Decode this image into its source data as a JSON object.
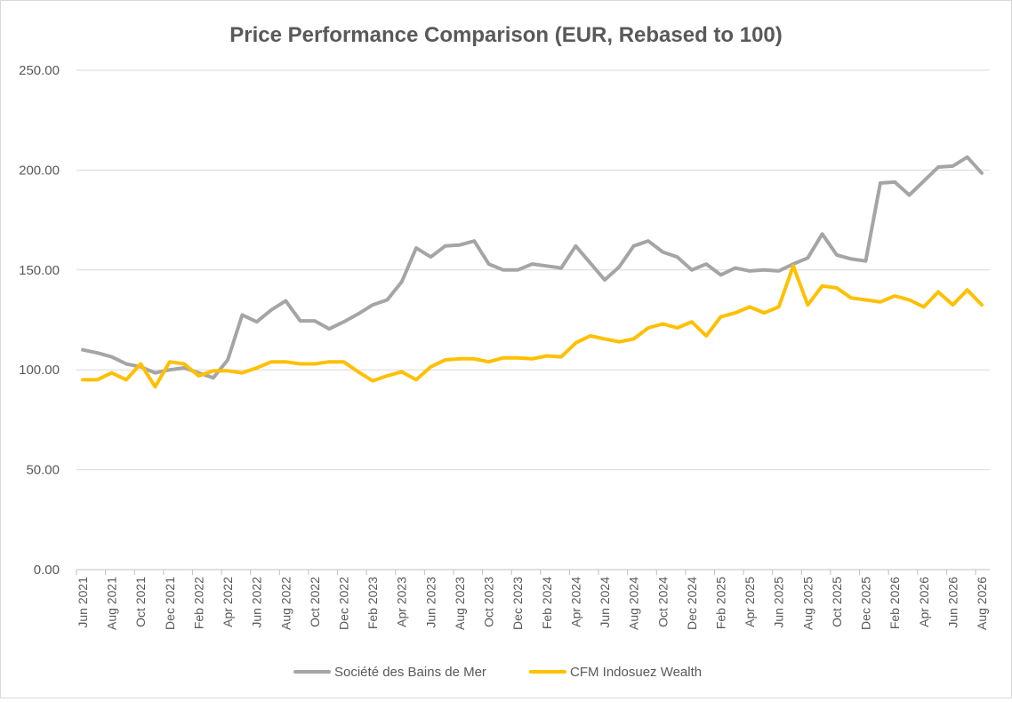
{
  "chart_data": {
    "type": "line",
    "title": "Price Performance Comparison (EUR, Rebased to 100)",
    "xlabel": "",
    "ylabel": "",
    "ylim": [
      0,
      250
    ],
    "yticks": [
      "0.00",
      "50.00",
      "100.00",
      "150.00",
      "200.00",
      "250.00"
    ],
    "grid": true,
    "legend_position": "bottom",
    "tick_labels": [
      "Jun 2021",
      "Aug 2021",
      "Oct 2021",
      "Dec 2021",
      "Feb 2022",
      "Apr 2022",
      "Jun 2022",
      "Aug 2022",
      "Oct 2022",
      "Dec 2022",
      "Feb 2023",
      "Apr 2023",
      "Jun 2023",
      "Aug 2023",
      "Oct 2023",
      "Dec 2023",
      "Feb 2024",
      "Apr 2024",
      "Jun 2024",
      "Aug 2024",
      "Oct 2024",
      "Dec 2024",
      "Feb 2025",
      "Apr 2025",
      "Jun 2025",
      "Aug 2025",
      "Oct 2025",
      "Dec 2025",
      "Feb 2026",
      "Apr 2026",
      "Jun 2026",
      "Aug 2026"
    ],
    "x": [
      "Jun 2021",
      "Jul 2021",
      "Aug 2021",
      "Sep 2021",
      "Oct 2021",
      "Nov 2021",
      "Dec 2021",
      "Jan 2022",
      "Feb 2022",
      "Mar 2022",
      "Apr 2022",
      "May 2022",
      "Jun 2022",
      "Jul 2022",
      "Aug 2022",
      "Sep 2022",
      "Oct 2022",
      "Nov 2022",
      "Dec 2022",
      "Jan 2023",
      "Feb 2023",
      "Mar 2023",
      "Apr 2023",
      "May 2023",
      "Jun 2023",
      "Jul 2023",
      "Aug 2023",
      "Sep 2023",
      "Oct 2023",
      "Nov 2023",
      "Dec 2023",
      "Jan 2024",
      "Feb 2024",
      "Mar 2024",
      "Apr 2024",
      "May 2024",
      "Jun 2024",
      "Jul 2024",
      "Aug 2024",
      "Sep 2024",
      "Oct 2024",
      "Nov 2024",
      "Dec 2024",
      "Jan 2025",
      "Feb 2025",
      "Mar 2025",
      "Apr 2025",
      "May 2025",
      "Jun 2025",
      "Jul 2025",
      "Aug 2025",
      "Sep 2025",
      "Oct 2025",
      "Nov 2025",
      "Dec 2025",
      "Jan 2026",
      "Feb 2026",
      "Mar 2026",
      "Apr 2026",
      "May 2026",
      "Jun 2026",
      "Jul 2026",
      "Aug 2026"
    ],
    "series": [
      {
        "name": "Société des Bains de Mer",
        "color": "#a5a5a5",
        "values": [
          110.0,
          108.5,
          106.5,
          103.0,
          101.5,
          98.5,
          100.0,
          101.0,
          98.5,
          96.0,
          105.0,
          127.5,
          124.0,
          130.0,
          134.5,
          124.5,
          124.5,
          120.5,
          124.0,
          128.0,
          132.5,
          135.0,
          144.0,
          161.0,
          156.5,
          162.0,
          162.5,
          164.5,
          153.0,
          150.0,
          150.0,
          153.0,
          152.0,
          151.0,
          162.0,
          153.5,
          145.0,
          151.5,
          162.0,
          164.5,
          159.0,
          156.5,
          150.0,
          153.0,
          147.5,
          151.0,
          149.5,
          150.0,
          149.5,
          153.0,
          156.0,
          168.0,
          157.5,
          155.5,
          154.5,
          193.5,
          194.0,
          187.5,
          194.5,
          201.5,
          202.0,
          206.5,
          198.5
        ]
      },
      {
        "name": "CFM Indosuez Wealth",
        "color": "#ffc000",
        "values": [
          95.0,
          95.0,
          98.5,
          95.0,
          103.0,
          91.5,
          104.0,
          103.0,
          97.0,
          99.5,
          99.5,
          98.5,
          101.0,
          104.0,
          104.0,
          103.0,
          103.0,
          104.0,
          104.0,
          99.0,
          94.5,
          97.0,
          99.0,
          95.0,
          101.5,
          105.0,
          105.5,
          105.5,
          104.0,
          106.0,
          106.0,
          105.5,
          107.0,
          106.5,
          113.5,
          117.0,
          115.5,
          114.0,
          115.5,
          121.0,
          123.0,
          121.0,
          124.0,
          117.0,
          126.5,
          128.5,
          131.5,
          128.5,
          131.5,
          152.0,
          132.5,
          142.0,
          141.0,
          136.0,
          135.0,
          134.0,
          137.0,
          135.0,
          131.5,
          139.0,
          132.5,
          140.0,
          132.5
        ]
      }
    ]
  }
}
